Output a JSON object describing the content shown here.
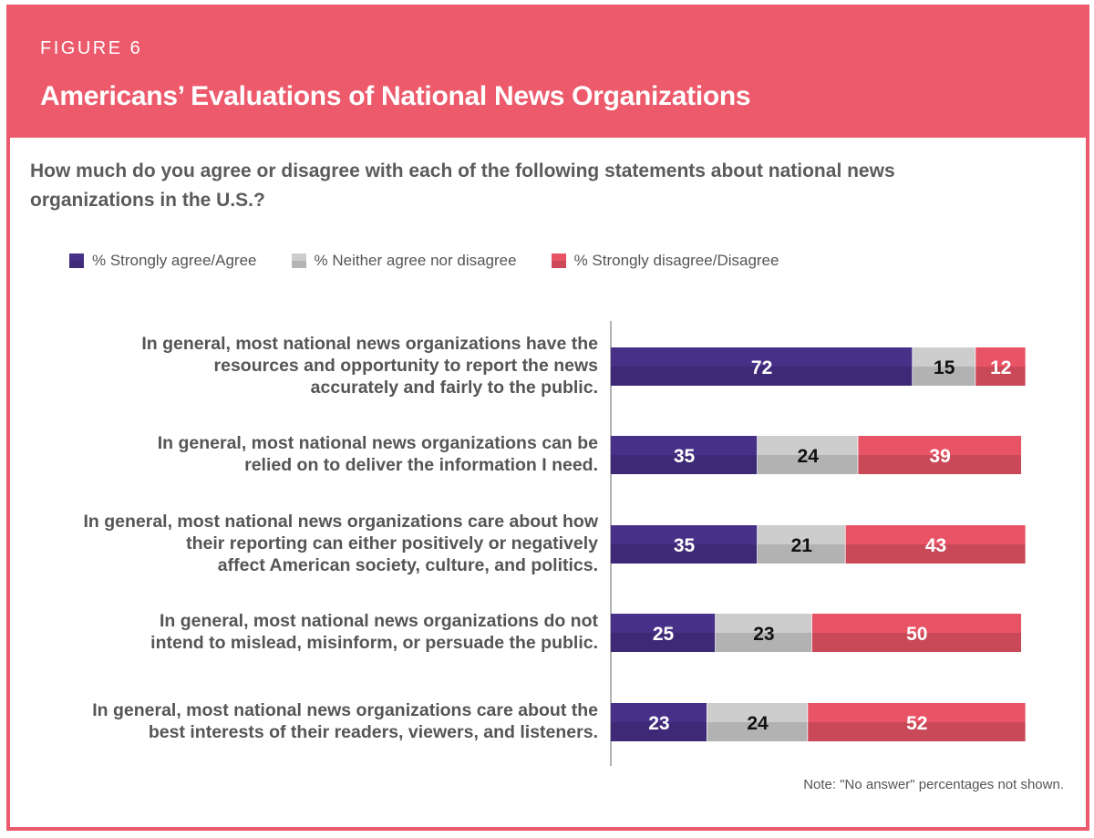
{
  "figure_label": "FIGURE 6",
  "title": "Americans’ Evaluations of National News Organizations",
  "question": "How much do you agree or disagree with each of the following statements about national news organizations in the U.S.?",
  "note": "Note: \"No answer\" percentages not shown.",
  "colors": {
    "agree": "#473087",
    "neither": "#cdcdcd",
    "disagree": "#e85466",
    "frame": "#ec5a6c"
  },
  "chart_data": {
    "type": "bar",
    "orientation": "horizontal",
    "stacked": true,
    "categories": [
      "In general, most national news organizations have the resources and opportunity to report the news accurately and fairly to the public.",
      "In general, most national news organizations can be relied on to deliver the information I need.",
      "In general, most national news organizations care about how their reporting can either positively or negatively affect American society, culture, and politics.",
      "In general, most national news organizations do not intend to mislead, misinform, or persuade the public.",
      "In general, most national news organizations care about the best interests of their readers, viewers, and listeners."
    ],
    "category_lines": [
      [
        "In general, most national news organizations have the",
        "resources and opportunity to report the news",
        "accurately and fairly to the public."
      ],
      [
        "In general, most national news organizations can be",
        "relied on to deliver the information I need."
      ],
      [
        "In general, most national news organizations care about how",
        "their reporting can either positively or negatively",
        "affect American society, culture, and politics."
      ],
      [
        "In general, most national news organizations do not",
        "intend to mislead, misinform, or persuade the public."
      ],
      [
        "In general, most national news organizations care about the",
        "best interests of their readers, viewers, and listeners."
      ]
    ],
    "series": [
      {
        "name": "% Strongly agree/Agree",
        "values": [
          72,
          35,
          35,
          25,
          23
        ]
      },
      {
        "name": "% Neither agree nor disagree",
        "values": [
          15,
          24,
          21,
          23,
          24
        ]
      },
      {
        "name": "% Strongly disagree/Disagree",
        "values": [
          12,
          39,
          43,
          50,
          52
        ]
      }
    ],
    "xlim": [
      0,
      100
    ],
    "legend": "top-left",
    "grid": false
  }
}
